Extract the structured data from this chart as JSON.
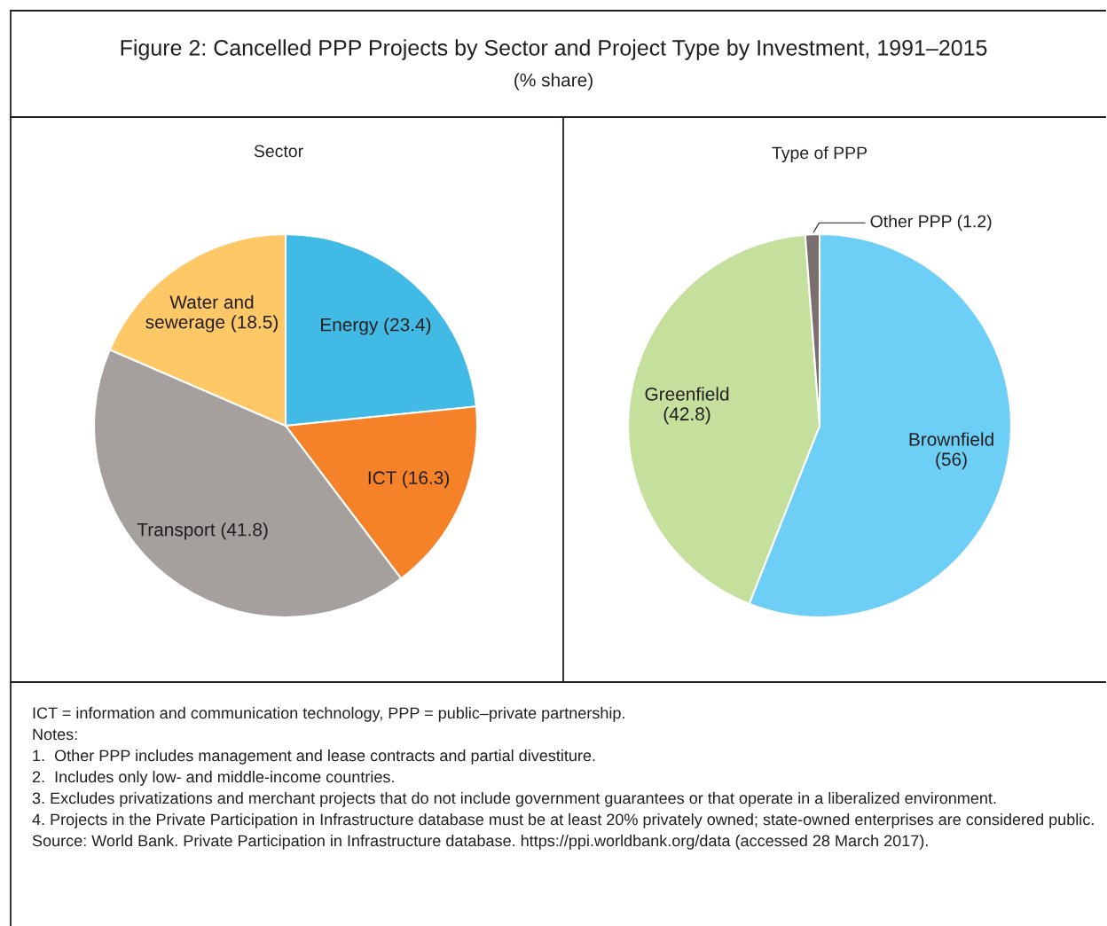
{
  "chart_data": [
    {
      "type": "other",
      "title": "Figure 2: Cancelled PPP Projects by Sector and Project Type by Investment, 1991–2015",
      "subtitle": "(% share)",
      "annotations": [
        "ICT = information and communication technology, PPP = public–private partnership.",
        "Notes:",
        "1.  Other PPP includes management and lease contracts and partial divestiture.",
        "2.  Includes only low- and middle-income countries.",
        "3. Excludes privatizations and merchant projects that do not include government guarantees or that operate in a liberalized environment.",
        "4. Projects in the Private Participation in Infrastructure database must be at least 20% privately owned; state-owned enterprises are considered public.",
        "Source: World Bank. Private Participation in Infrastructure database. https://ppi.worldbank.org/data (accessed 28 March 2017)."
      ]
    },
    {
      "type": "pie",
      "title": "Sector",
      "categories": [
        "Energy",
        "ICT",
        "Transport",
        "Water and sewerage"
      ],
      "values": [
        23.4,
        16.3,
        41.8,
        18.5
      ],
      "colors": [
        "#41bbe6",
        "#f58228",
        "#a59f9d",
        "#fec867"
      ],
      "value_labels": [
        "(23.4)",
        "(16.3)",
        "(41.8)",
        "(18.5)"
      ]
    },
    {
      "type": "pie",
      "title": "Type of PPP",
      "categories": [
        "Brownfield",
        "Greenfield",
        "Other PPP"
      ],
      "values": [
        56,
        42.8,
        1.2
      ],
      "colors": [
        "#6dcff6",
        "#c5df9c",
        "#7a6e6e"
      ],
      "value_labels": [
        "(56)",
        "(42.8)",
        "(1.2)"
      ]
    }
  ]
}
